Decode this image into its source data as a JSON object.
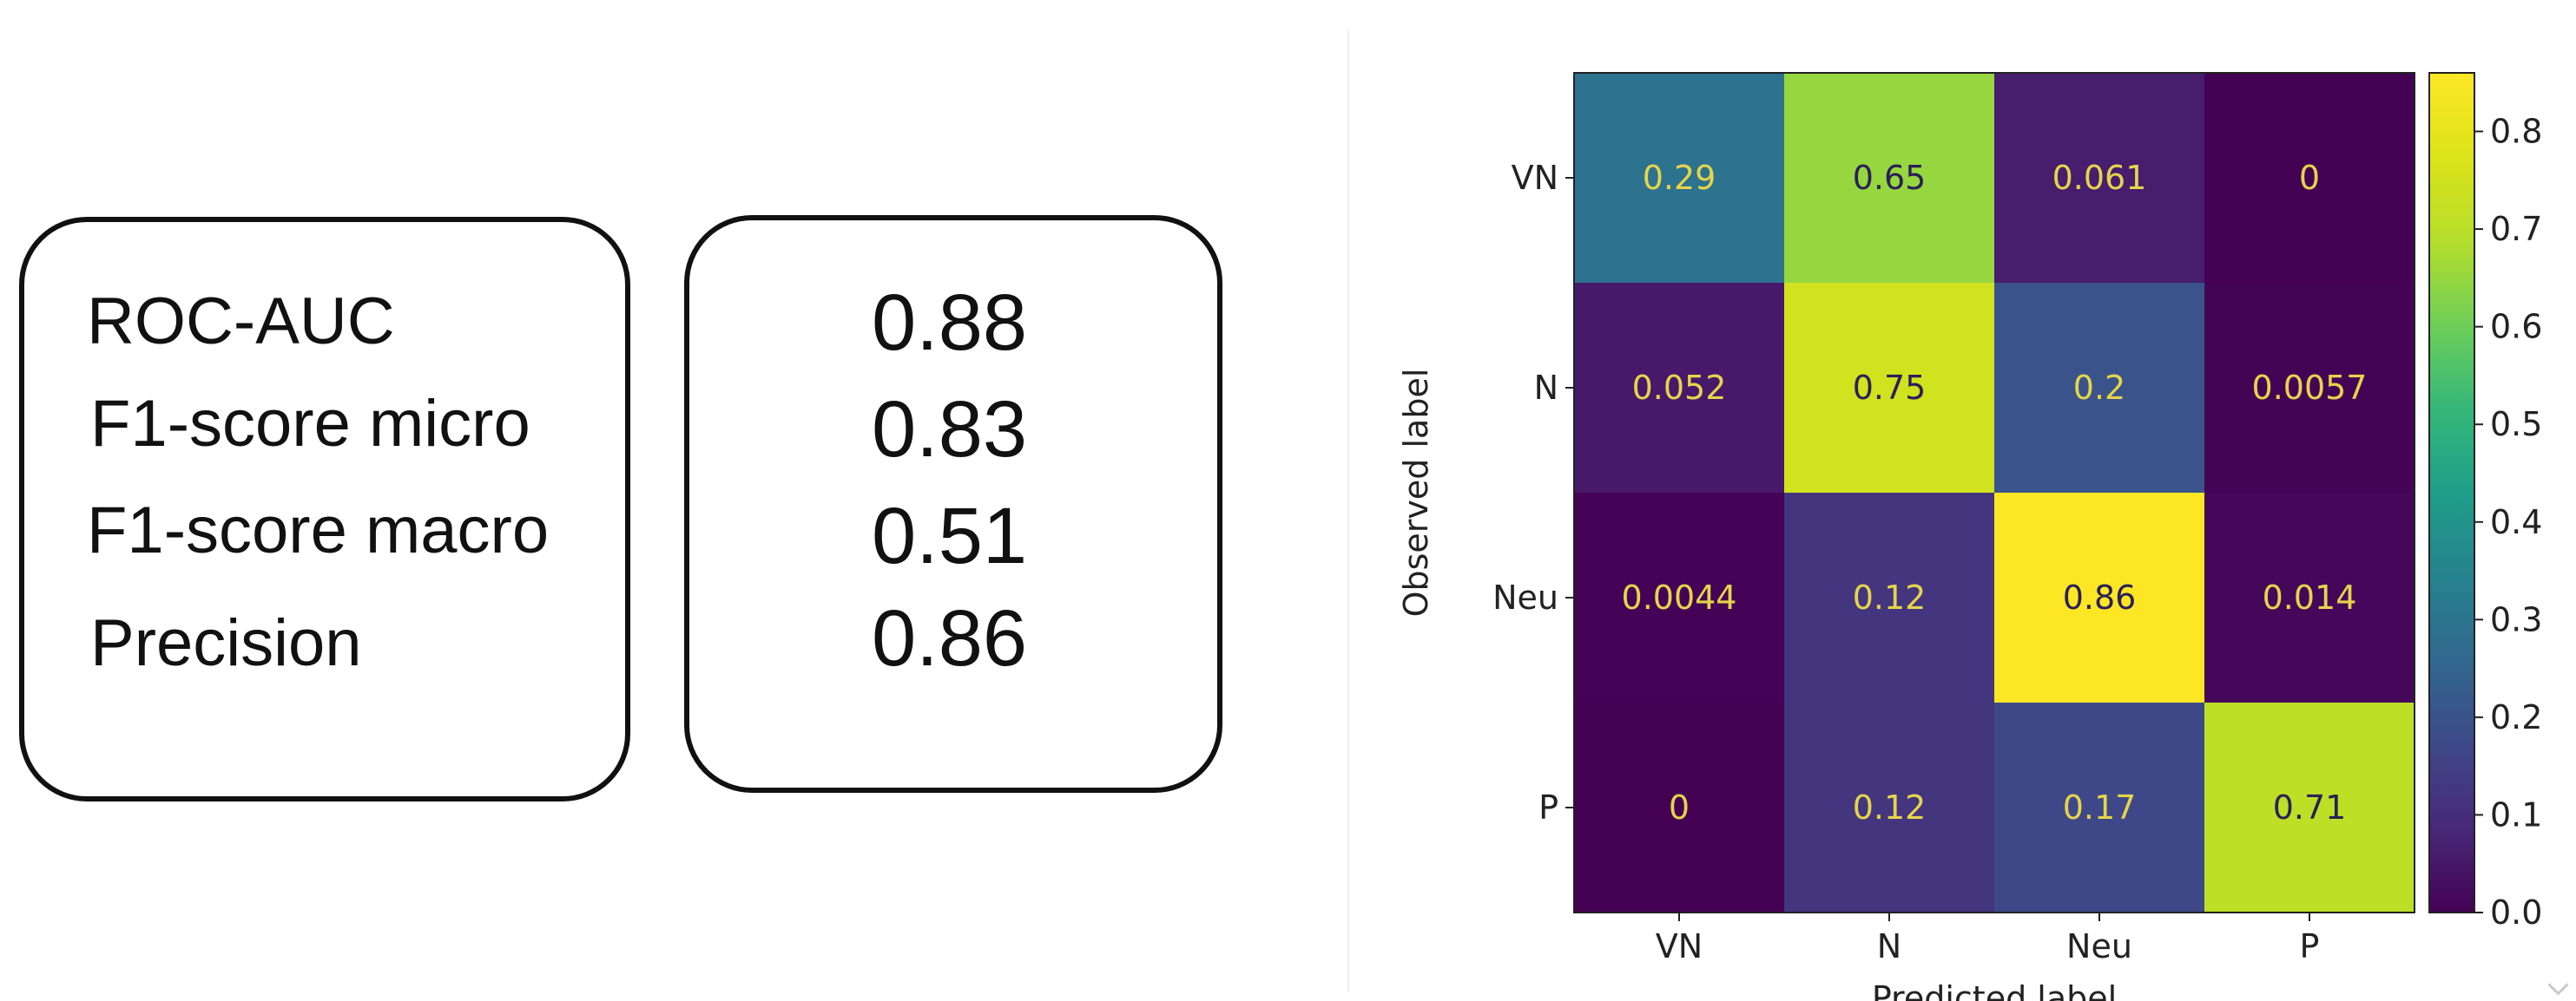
{
  "metrics": {
    "labels": [
      "ROC-AUC",
      "F1-score micro",
      "F1-score macro",
      "Precision"
    ],
    "values": [
      "0.88",
      "0.83",
      "0.51",
      "0.86"
    ]
  },
  "chart_data": {
    "type": "heatmap",
    "title": "",
    "xlabel": "Predicted label",
    "ylabel": "Observed label",
    "x_categories": [
      "VN",
      "N",
      "Neu",
      "P"
    ],
    "y_categories": [
      "VN",
      "N",
      "Neu",
      "P"
    ],
    "values": [
      [
        0.29,
        0.65,
        0.061,
        0
      ],
      [
        0.052,
        0.75,
        0.2,
        0.0057
      ],
      [
        0.0044,
        0.12,
        0.86,
        0.014
      ],
      [
        0,
        0.12,
        0.17,
        0.71
      ]
    ],
    "cell_labels": [
      [
        "0.29",
        "0.65",
        "0.061",
        "0"
      ],
      [
        "0.052",
        "0.75",
        "0.2",
        "0.0057"
      ],
      [
        "0.0044",
        "0.12",
        "0.86",
        "0.014"
      ],
      [
        "0",
        "0.12",
        "0.17",
        "0.71"
      ]
    ],
    "colorbar": {
      "range": [
        0,
        0.86
      ],
      "ticks": [
        "0.0",
        "0.1",
        "0.2",
        "0.3",
        "0.4",
        "0.5",
        "0.6",
        "0.7",
        "0.8"
      ],
      "colormap": "viridis"
    },
    "grid": false,
    "colors": {
      "label_on_dark": "#e5d54a",
      "label_on_light": "#2b1f59"
    }
  }
}
